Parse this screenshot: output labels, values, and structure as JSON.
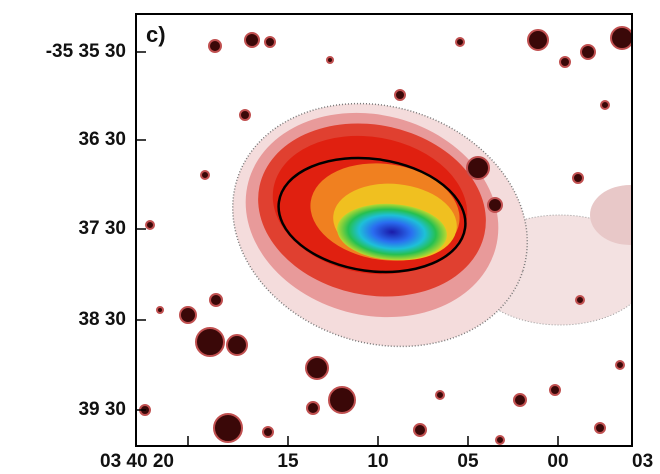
{
  "figure": {
    "panel_label": "c)",
    "y_tick_labels": [
      "-35 35 30",
      "36 30",
      "37 30",
      "38 30",
      "39 30"
    ],
    "x_tick_labels": [
      "03 40 20",
      "15",
      "10",
      "05",
      "00",
      "03"
    ]
  }
}
